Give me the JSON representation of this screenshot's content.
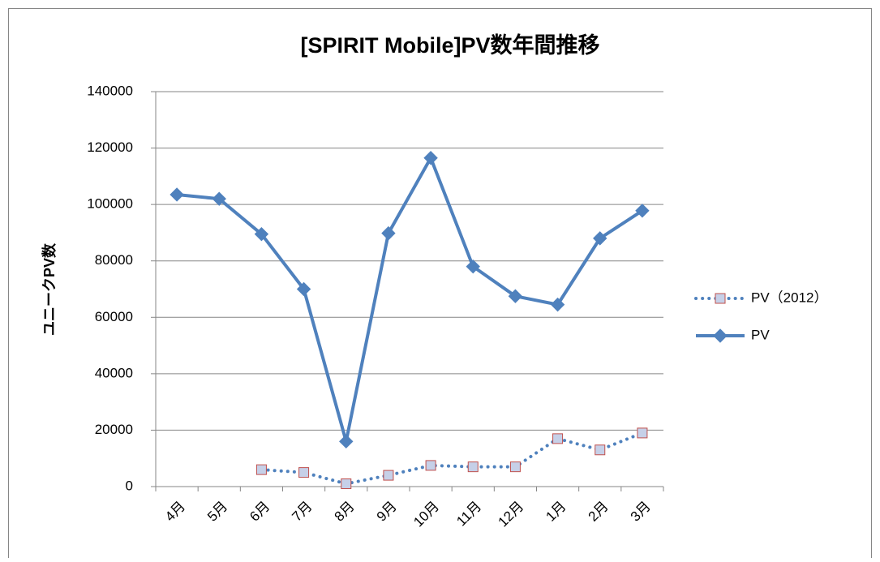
{
  "chart_data": {
    "type": "line",
    "title": "[SPIRIT Mobile]PV数年間推移",
    "y_label": "ユニークPV数",
    "categories": [
      "4月",
      "5月",
      "6月",
      "7月",
      "8月",
      "9月",
      "10月",
      "11月",
      "12月",
      "1月",
      "2月",
      "3月"
    ],
    "series": [
      {
        "name": "PV（2012）",
        "color": "#4f81bd",
        "line_style": "dotted",
        "marker": "square",
        "marker_fill": "#c6d0e8",
        "marker_edge": "#c0504d",
        "values": [
          null,
          null,
          6000,
          5000,
          1000,
          4000,
          7500,
          7000,
          7000,
          17000,
          13000,
          19000
        ]
      },
      {
        "name": "PV",
        "color": "#4f81bd",
        "line_style": "solid",
        "marker": "diamond",
        "marker_fill": "#4f81bd",
        "marker_edge": "#4f81bd",
        "values": [
          103500,
          102000,
          89500,
          70000,
          16000,
          89800,
          116500,
          78000,
          67500,
          64500,
          88000,
          97800
        ]
      }
    ],
    "ylim": [
      0,
      140000
    ],
    "yticks": [
      0,
      20000,
      40000,
      60000,
      80000,
      100000,
      120000,
      140000
    ],
    "grid": true,
    "legend": "right"
  }
}
